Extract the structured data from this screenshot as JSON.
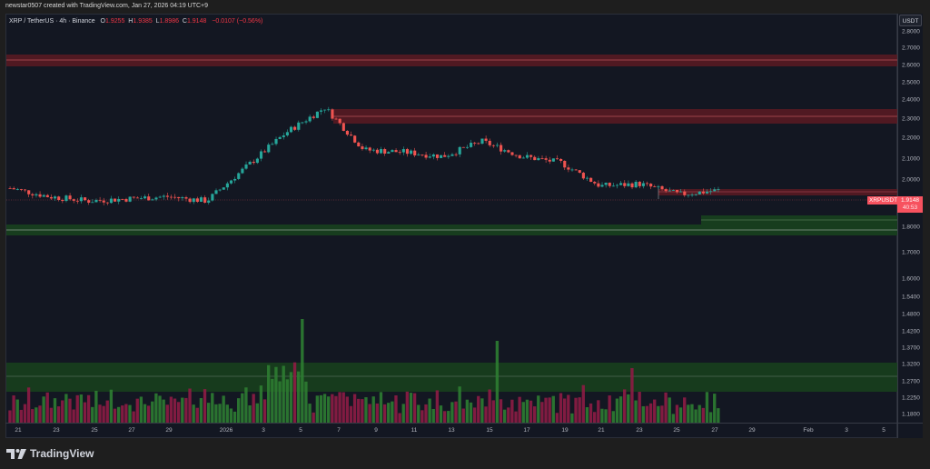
{
  "header": {
    "credit": "newstar0507 created with TradingView.com, Jan 27, 2026 04:19 UTC+9"
  },
  "legend": {
    "symbol": "XRP / TetherUS · 4h · Binance",
    "open_label": "O",
    "open": "1.9255",
    "high_label": "H",
    "high": "1.9385",
    "low_label": "L",
    "low": "1.8986",
    "close_label": "C",
    "close": "1.9148",
    "change": "−0.0107 (−0.56%)"
  },
  "price_axis": {
    "currency": "USDT",
    "ticks": [
      "2.8000",
      "2.7000",
      "2.6000",
      "2.5000",
      "2.4000",
      "2.3000",
      "2.2000",
      "2.1000",
      "2.0000",
      "1.8000",
      "1.7000",
      "1.6000",
      "1.5400",
      "1.4800",
      "1.4200",
      "1.3700",
      "1.3200",
      "1.2700",
      "1.2250",
      "1.1800"
    ]
  },
  "current_price": {
    "symbol": "XRPUSDT",
    "price": "1.9148",
    "countdown": "40:53"
  },
  "time_axis": {
    "ticks": [
      "21",
      "23",
      "25",
      "27",
      "29",
      "2026",
      "3",
      "5",
      "7",
      "9",
      "11",
      "13",
      "15",
      "17",
      "19",
      "21",
      "23",
      "25",
      "27",
      "29",
      "Feb",
      "3",
      "5"
    ]
  },
  "branding": {
    "logo_text": "TradingView"
  },
  "colors": {
    "background": "#131722",
    "up": "#26a69a",
    "down": "#ef5350",
    "volume_up": "#2e7d32",
    "volume_down": "#8e1c45",
    "resistance_zone": "#5c1a22",
    "support_zone": "#173d1e"
  },
  "chart_data": {
    "type": "candlestick",
    "title": "XRP / TetherUS · 4h · Binance",
    "xlabel": "",
    "ylabel": "USDT",
    "ylim": [
      1.18,
      2.8
    ],
    "x": [
      "Dec 21",
      "Dec 23",
      "Dec 25",
      "Dec 27",
      "Dec 29",
      "Jan 1 2026",
      "Jan 3",
      "Jan 5",
      "Jan 7",
      "Jan 9",
      "Jan 11",
      "Jan 13",
      "Jan 15",
      "Jan 17",
      "Jan 19",
      "Jan 21",
      "Jan 23",
      "Jan 25",
      "Jan 27"
    ],
    "series": [
      {
        "name": "approx close (daily)",
        "values": [
          1.92,
          1.88,
          1.86,
          1.87,
          1.88,
          1.86,
          2.02,
          2.18,
          2.3,
          2.1,
          2.09,
          2.07,
          2.14,
          2.07,
          2.04,
          1.93,
          1.94,
          1.89,
          1.91
        ]
      }
    ],
    "annotations": {
      "resistance_zones": [
        [
          2.61,
          2.65
        ],
        [
          2.28,
          2.35
        ],
        [
          1.93,
          1.96
        ]
      ],
      "support_zones": [
        [
          1.78,
          1.82
        ],
        [
          1.82,
          1.85
        ]
      ],
      "last_price": 1.9148,
      "high_point": 2.41,
      "low_point": 1.82
    },
    "volume_zone": "highlighted band near volume spikes",
    "grid": false,
    "legend_position": "top-left"
  }
}
